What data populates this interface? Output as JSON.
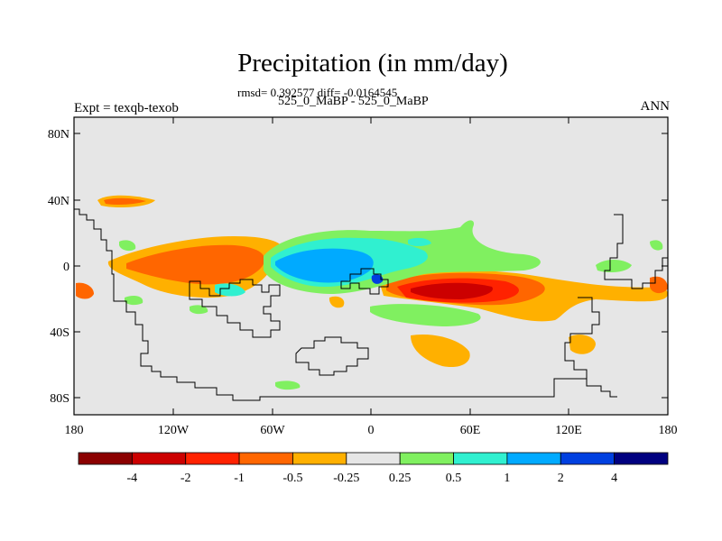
{
  "title": "Precipitation (in mm/day)",
  "stats": "rmsd= 0.392577 diff= -0.0164545",
  "case_label": "525_0_MaBP - 525_0_MaBP",
  "left_label": "Expt = texqb-texob",
  "right_label": "ANN",
  "map": {
    "lat_ticks": [
      "80N",
      "40N",
      "0",
      "40S",
      "80S"
    ],
    "lon_ticks": [
      "180",
      "120W",
      "60W",
      "0",
      "60E",
      "120E",
      "180"
    ],
    "background_color": "#e6e6e6"
  },
  "colorbar": {
    "labels": [
      "-4",
      "-2",
      "-1",
      "-0.5",
      "-0.25",
      "0.25",
      "0.5",
      "1",
      "2",
      "4"
    ],
    "colors": [
      "#8b0000",
      "#cc0000",
      "#ff2200",
      "#ff6600",
      "#ffb000",
      "#e6e6e6",
      "#80f060",
      "#30f0d0",
      "#00aaff",
      "#0040e0",
      "#000080"
    ]
  }
}
